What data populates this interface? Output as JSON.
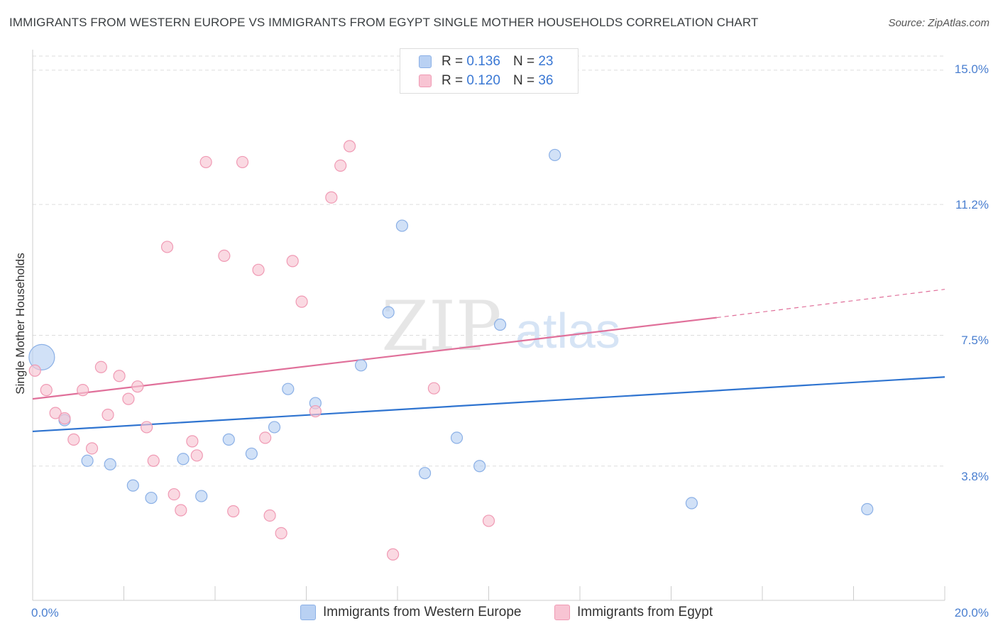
{
  "header": {
    "title": "IMMIGRANTS FROM WESTERN EUROPE VS IMMIGRANTS FROM EGYPT SINGLE MOTHER HOUSEHOLDS CORRELATION CHART",
    "source": "Source: ZipAtlas.com"
  },
  "legend_top": {
    "rows": [
      {
        "r_label": "R =",
        "r_value": "0.136",
        "n_label": "N =",
        "n_value": "23"
      },
      {
        "r_label": "R =",
        "r_value": "0.120",
        "n_label": "N =",
        "n_value": "36"
      }
    ]
  },
  "legend_bottom": {
    "items": [
      "Immigrants from Western Europe",
      "Immigrants from Egypt"
    ]
  },
  "watermark": {
    "zip": "ZIP",
    "atlas": "atlas"
  },
  "colors": {
    "blue_fill": "#b9d1f3",
    "blue_stroke": "#8bb0e6",
    "blue_line": "#2f74d0",
    "pink_fill": "#f8c4d3",
    "pink_stroke": "#f09ab4",
    "pink_line": "#e0709a",
    "tick_text": "#4a7fd0",
    "grid": "#dddddd"
  },
  "chart_data": {
    "type": "scatter",
    "title": "IMMIGRANTS FROM WESTERN EUROPE VS IMMIGRANTS FROM EGYPT SINGLE MOTHER HOUSEHOLDS CORRELATION CHART",
    "xlabel": "",
    "ylabel": "Single Mother Households",
    "xlim": [
      0,
      20
    ],
    "ylim": [
      0,
      15.4
    ],
    "x_tick_labels": [
      "0.0%",
      "20.0%"
    ],
    "y_ticks": [
      3.8,
      7.5,
      11.2,
      15.0
    ],
    "y_tick_labels": [
      "3.8%",
      "7.5%",
      "11.2%",
      "15.0%"
    ],
    "grid": true,
    "legend": "bottom-center",
    "series": [
      {
        "name": "Immigrants from Western Europe",
        "color": "blue",
        "points": [
          {
            "x": 0.2,
            "y": 6.88,
            "big": true
          },
          {
            "x": 0.7,
            "y": 5.1
          },
          {
            "x": 1.2,
            "y": 3.95
          },
          {
            "x": 1.7,
            "y": 3.85
          },
          {
            "x": 2.2,
            "y": 3.25
          },
          {
            "x": 2.6,
            "y": 2.9
          },
          {
            "x": 3.3,
            "y": 4.0
          },
          {
            "x": 3.7,
            "y": 2.95
          },
          {
            "x": 4.3,
            "y": 4.55
          },
          {
            "x": 4.8,
            "y": 4.15
          },
          {
            "x": 5.3,
            "y": 4.9
          },
          {
            "x": 5.6,
            "y": 5.98
          },
          {
            "x": 6.2,
            "y": 5.58
          },
          {
            "x": 7.2,
            "y": 6.65
          },
          {
            "x": 7.8,
            "y": 8.15
          },
          {
            "x": 8.1,
            "y": 10.6
          },
          {
            "x": 8.6,
            "y": 3.6
          },
          {
            "x": 9.3,
            "y": 4.6
          },
          {
            "x": 9.8,
            "y": 3.8
          },
          {
            "x": 10.25,
            "y": 7.8
          },
          {
            "x": 11.45,
            "y": 12.6
          },
          {
            "x": 14.45,
            "y": 2.75
          },
          {
            "x": 18.3,
            "y": 2.58
          }
        ],
        "trend": {
          "x0": 0,
          "y0": 4.78,
          "x1": 20,
          "y1": 6.32
        }
      },
      {
        "name": "Immigrants from Egypt",
        "color": "pink",
        "points": [
          {
            "x": 0.05,
            "y": 6.5
          },
          {
            "x": 0.3,
            "y": 5.95
          },
          {
            "x": 0.5,
            "y": 5.3
          },
          {
            "x": 0.7,
            "y": 5.15
          },
          {
            "x": 0.9,
            "y": 4.55
          },
          {
            "x": 1.1,
            "y": 5.95
          },
          {
            "x": 1.3,
            "y": 4.3
          },
          {
            "x": 1.5,
            "y": 6.6
          },
          {
            "x": 1.65,
            "y": 5.25
          },
          {
            "x": 1.9,
            "y": 6.35
          },
          {
            "x": 2.1,
            "y": 5.7
          },
          {
            "x": 2.3,
            "y": 6.05
          },
          {
            "x": 2.5,
            "y": 4.9
          },
          {
            "x": 2.65,
            "y": 3.95
          },
          {
            "x": 2.95,
            "y": 10.0
          },
          {
            "x": 3.1,
            "y": 3.0
          },
          {
            "x": 3.25,
            "y": 2.55
          },
          {
            "x": 3.5,
            "y": 4.5
          },
          {
            "x": 3.6,
            "y": 4.1
          },
          {
            "x": 3.8,
            "y": 12.4
          },
          {
            "x": 4.2,
            "y": 9.75
          },
          {
            "x": 4.4,
            "y": 2.52
          },
          {
            "x": 4.6,
            "y": 12.4
          },
          {
            "x": 4.95,
            "y": 9.35
          },
          {
            "x": 5.1,
            "y": 4.6
          },
          {
            "x": 5.2,
            "y": 2.4
          },
          {
            "x": 5.45,
            "y": 1.9
          },
          {
            "x": 5.7,
            "y": 9.6
          },
          {
            "x": 5.9,
            "y": 8.45
          },
          {
            "x": 6.2,
            "y": 5.35
          },
          {
            "x": 6.55,
            "y": 11.4
          },
          {
            "x": 6.75,
            "y": 12.3
          },
          {
            "x": 6.95,
            "y": 12.85
          },
          {
            "x": 7.9,
            "y": 1.3
          },
          {
            "x": 8.8,
            "y": 6.0
          },
          {
            "x": 10.0,
            "y": 2.25
          }
        ],
        "trend": {
          "x0": 0,
          "y0": 5.7,
          "x1": 15.0,
          "y1": 8.0
        },
        "trend_dashed": {
          "x0": 15.0,
          "y0": 8.0,
          "x1": 20,
          "y1": 8.8
        }
      }
    ]
  }
}
